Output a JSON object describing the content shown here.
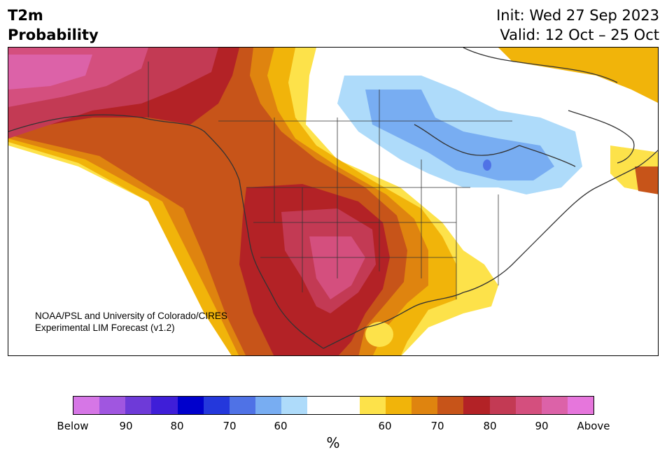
{
  "title": {
    "line1": "T2m",
    "line2": "Probability"
  },
  "init": {
    "line1": "Init: Wed 27 Sep 2023",
    "line2": "Valid: 12 Oct – 25 Oct"
  },
  "credit": {
    "line1": "NOAA/PSL and University of Colorado/CIRES",
    "line2": "Experimental LIM Forecast (v1.2)"
  },
  "colorbar": {
    "colors": [
      "#d676e6",
      "#a056e0",
      "#6e3ad8",
      "#3f1ed8",
      "#0000cc",
      "#2438dc",
      "#4f72e6",
      "#78adf2",
      "#aedbfa",
      "#ffffff",
      "#ffffff",
      "#fde24a",
      "#f1b40a",
      "#df840f",
      "#c75419",
      "#b32226",
      "#c33a54",
      "#d44f7e",
      "#dc62a8",
      "#e676dc"
    ],
    "labels": [
      "Below",
      "90",
      "80",
      "70",
      "60",
      "60",
      "70",
      "80",
      "90",
      "Above"
    ],
    "unit": "%"
  },
  "map_regions": {
    "alaska": "Above",
    "pacific_northwest": "80",
    "southwest": "90",
    "southern_plains": "80",
    "northern_plains": "60",
    "great_lakes": "Below 70",
    "northeast": "neutral",
    "newfoundland": "70"
  },
  "colors": {
    "map_outline": "#333333",
    "frame": "#000000"
  }
}
